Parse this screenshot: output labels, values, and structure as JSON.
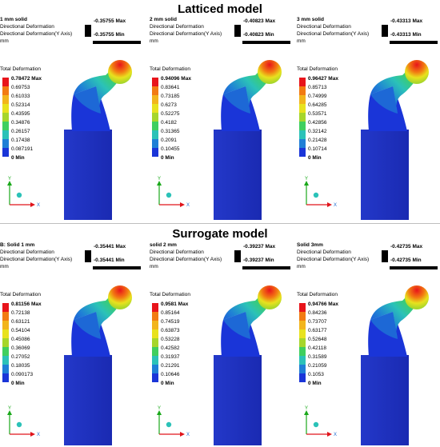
{
  "sections": [
    {
      "title": "Latticed model",
      "panels": [
        {
          "name": "1 mm solid",
          "line1": "Directional Deformation",
          "line2": "Directional Deformation(Y Axis)",
          "unit": "mm",
          "max_label": "-0.35755 Max",
          "min_label": "-0.35755 Min",
          "legend_title": "Total Deformation",
          "legend": [
            "0.78472 Max",
            "0.69753",
            "0.61033",
            "0.52314",
            "0.43595",
            "0.34876",
            "0.26157",
            "0.17438",
            "0.087191",
            "0 Min"
          ]
        },
        {
          "name": "2 mm solid",
          "line1": "Directional Deformation",
          "line2": "Directional Deformation(Y Axis)",
          "unit": "mm",
          "max_label": "-0.40823 Max",
          "min_label": "-0.40823 Min",
          "legend_title": "Total Deformation",
          "legend": [
            "0.94096 Max",
            "0.83641",
            "0.73185",
            "0.6273",
            "0.52275",
            "0.4182",
            "0.31365",
            "0.2091",
            "0.10455",
            "0 Min"
          ]
        },
        {
          "name": "3 mm solid",
          "line1": "Directional Deformation",
          "line2": "Directional Deformation(Y Axis)",
          "unit": "mm",
          "max_label": "-0.43313 Max",
          "min_label": "-0.43313 Min",
          "legend_title": "Total Deformation",
          "legend": [
            "0.96427 Max",
            "0.85713",
            "0.74999",
            "0.64285",
            "0.53571",
            "0.42856",
            "0.32142",
            "0.21428",
            "0.10714",
            "0 Min"
          ]
        }
      ]
    },
    {
      "title": "Surrogate model",
      "panels": [
        {
          "name": "B: Solid 1 mm",
          "line1": "Directional Deformation",
          "line2": "Directional Deformation(Y Axis)",
          "unit": "mm",
          "max_label": "-0.35441 Max",
          "min_label": "-0.35441 Min",
          "legend_title": "Total Deformation",
          "legend": [
            "0.81156 Max",
            "0.72138",
            "0.63121",
            "0.54104",
            "0.45086",
            "0.36069",
            "0.27052",
            "0.18035",
            "0.090173",
            "0 Min"
          ]
        },
        {
          "name": "solid  2 mm",
          "line1": "Directional Deformation",
          "line2": "Directional Deformation(Y Axis)",
          "unit": "mm",
          "max_label": "-0.39237 Max",
          "min_label": "-0.39237 Min",
          "legend_title": "Total Deformation",
          "legend": [
            "0.9581 Max",
            "0.85164",
            "0.74519",
            "0.63873",
            "0.53228",
            "0.42582",
            "0.31937",
            "0.21291",
            "0.10646",
            "0 Min"
          ]
        },
        {
          "name": "Solid 3mm",
          "line1": "Directional Deformation",
          "line2": "Directional Deformation(Y Axis)",
          "unit": "mm",
          "max_label": "-0.42735 Max",
          "min_label": "-0.42735 Min",
          "legend_title": "Total Deformation",
          "legend": [
            "0.94766 Max",
            "0.84236",
            "0.73707",
            "0.63177",
            "0.52648",
            "0.42118",
            "0.31589",
            "0.21059",
            "0.1053",
            "0 Min"
          ]
        }
      ]
    }
  ],
  "axis_labels": {
    "y": "Y",
    "x": "X"
  },
  "colors": [
    "#e8141b",
    "#f27b12",
    "#f2b51c",
    "#e8e21e",
    "#a6d62b",
    "#3fcf5f",
    "#2bc2b8",
    "#1f7fd6",
    "#1a35d8",
    "#14149a"
  ]
}
